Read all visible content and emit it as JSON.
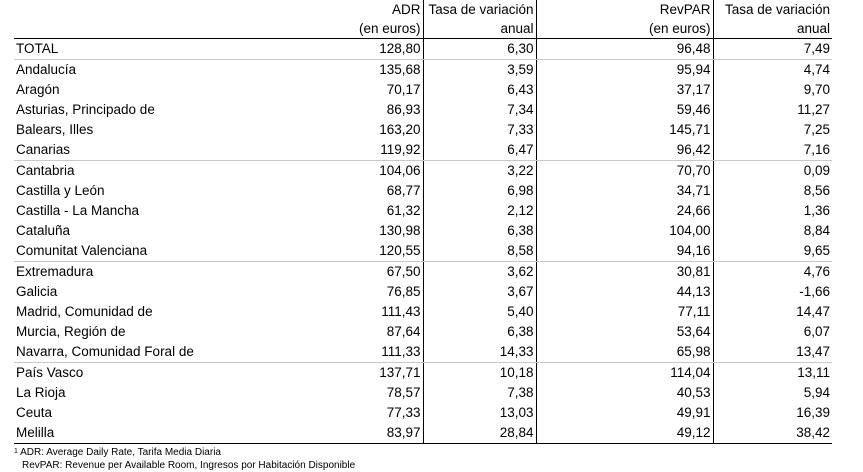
{
  "header": {
    "adr_line1": "ADR",
    "adr_line2": "(en euros)",
    "tasa1_line1": "Tasa de variación",
    "tasa1_line2": "anual",
    "revpar_line1": "RevPAR",
    "revpar_line2": "(en euros)",
    "tasa2_line1": "Tasa de variación",
    "tasa2_line2": "anual"
  },
  "rows": [
    {
      "name": "TOTAL",
      "adr": "128,80",
      "tasa_adr": "6,30",
      "revpar": "96,48",
      "tasa_revpar": "7,49"
    },
    {
      "name": "Andalucía",
      "adr": "135,68",
      "tasa_adr": "3,59",
      "revpar": "95,94",
      "tasa_revpar": "4,74"
    },
    {
      "name": "Aragón",
      "adr": "70,17",
      "tasa_adr": "6,43",
      "revpar": "37,17",
      "tasa_revpar": "9,70"
    },
    {
      "name": "Asturias, Principado de",
      "adr": "86,93",
      "tasa_adr": "7,34",
      "revpar": "59,46",
      "tasa_revpar": "11,27"
    },
    {
      "name": "Balears, Illes",
      "adr": "163,20",
      "tasa_adr": "7,33",
      "revpar": "145,71",
      "tasa_revpar": "7,25"
    },
    {
      "name": "Canarias",
      "adr": "119,92",
      "tasa_adr": "6,47",
      "revpar": "96,42",
      "tasa_revpar": "7,16"
    },
    {
      "name": "Cantabria",
      "adr": "104,06",
      "tasa_adr": "3,22",
      "revpar": "70,70",
      "tasa_revpar": "0,09"
    },
    {
      "name": "Castilla y León",
      "adr": "68,77",
      "tasa_adr": "6,98",
      "revpar": "34,71",
      "tasa_revpar": "8,56"
    },
    {
      "name": "Castilla - La Mancha",
      "adr": "61,32",
      "tasa_adr": "2,12",
      "revpar": "24,66",
      "tasa_revpar": "1,36"
    },
    {
      "name": "Cataluña",
      "adr": "130,98",
      "tasa_adr": "6,38",
      "revpar": "104,00",
      "tasa_revpar": "8,84"
    },
    {
      "name": "Comunitat Valenciana",
      "adr": "120,55",
      "tasa_adr": "8,58",
      "revpar": "94,16",
      "tasa_revpar": "9,65"
    },
    {
      "name": "Extremadura",
      "adr": "67,50",
      "tasa_adr": "3,62",
      "revpar": "30,81",
      "tasa_revpar": "4,76"
    },
    {
      "name": "Galicia",
      "adr": "76,85",
      "tasa_adr": "3,67",
      "revpar": "44,13",
      "tasa_revpar": "-1,66"
    },
    {
      "name": "Madrid, Comunidad de",
      "adr": "111,43",
      "tasa_adr": "5,40",
      "revpar": "77,11",
      "tasa_revpar": "14,47"
    },
    {
      "name": "Murcia, Región de",
      "adr": "87,64",
      "tasa_adr": "6,38",
      "revpar": "53,64",
      "tasa_revpar": "6,07"
    },
    {
      "name": "Navarra, Comunidad Foral de",
      "adr": "111,33",
      "tasa_adr": "14,33",
      "revpar": "65,98",
      "tasa_revpar": "13,47"
    },
    {
      "name": "País Vasco",
      "adr": "137,71",
      "tasa_adr": "10,18",
      "revpar": "114,04",
      "tasa_revpar": "13,11"
    },
    {
      "name": "La Rioja",
      "adr": "78,57",
      "tasa_adr": "7,38",
      "revpar": "40,53",
      "tasa_revpar": "5,94"
    },
    {
      "name": "Ceuta",
      "adr": "77,33",
      "tasa_adr": "13,03",
      "revpar": "49,91",
      "tasa_revpar": "16,39"
    },
    {
      "name": "Melilla",
      "adr": "83,97",
      "tasa_adr": "28,84",
      "revpar": "49,12",
      "tasa_revpar": "38,42"
    }
  ],
  "notes": {
    "note1_mark": "1",
    "note1": "ADR: Average Daily Rate, Tarifa Media Diaria",
    "note2": "RevPAR: Revenue per Available Room, Ingresos por Habitación Disponible"
  }
}
